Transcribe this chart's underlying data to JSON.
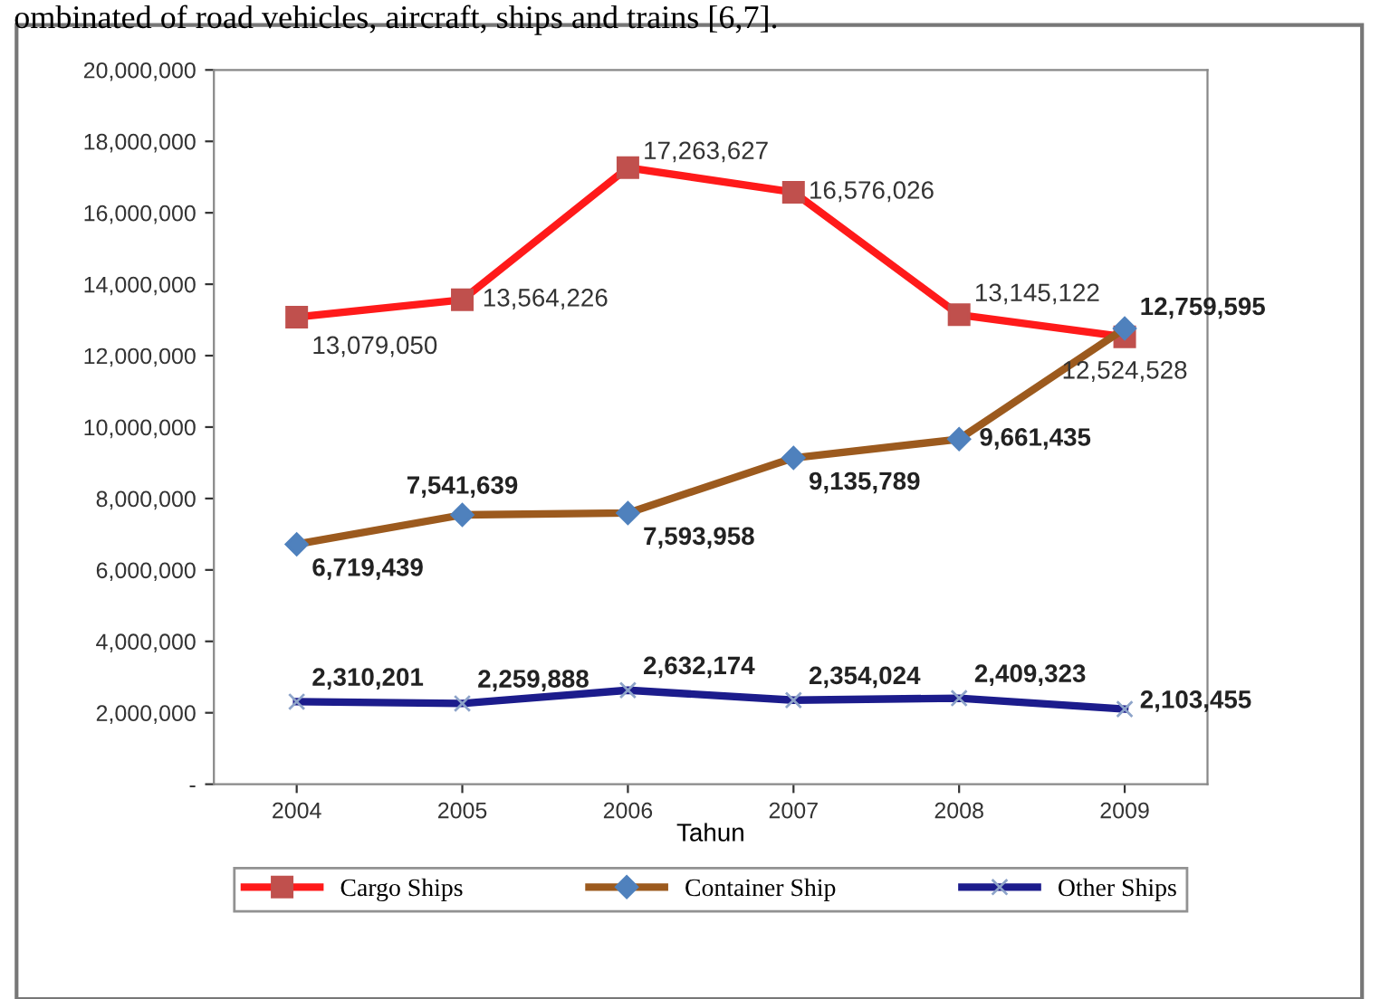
{
  "chart_data": {
    "type": "line",
    "xlabel": "Tahun",
    "annotations": [
      "ombinated of road vehicles, aircraft, ships and trains [6,7]."
    ],
    "categories": [
      "2004",
      "2005",
      "2006",
      "2007",
      "2008",
      "2009"
    ],
    "series": [
      {
        "name": "Cargo Ships",
        "color": "#ff1a1a",
        "marker": "square",
        "values": [
          13079050,
          13564226,
          17263627,
          16576026,
          13145122,
          12524528
        ],
        "value_labels": [
          "13,079,050",
          "13,564,226",
          "17,263,627",
          "16,576,026",
          "13,145,122",
          "12,524,528"
        ]
      },
      {
        "name": "Container Ship",
        "color": "#9c5a1e",
        "marker": "diamond",
        "values": [
          6719439,
          7541639,
          7593958,
          9135789,
          9661435,
          12759595
        ],
        "value_labels": [
          "6,719,439",
          "7,541,639",
          "7,593,958",
          "9,135,789",
          "9,661,435",
          "12,759,595"
        ]
      },
      {
        "name": "Other Ships",
        "color": "#1c1c8c",
        "marker": "cross",
        "values": [
          2310201,
          2259888,
          2632174,
          2354024,
          2409323,
          2103455
        ],
        "value_labels": [
          "2,310,201",
          "2,259,888",
          "2,632,174",
          "2,354,024",
          "2,409,323",
          "2,103,455"
        ]
      }
    ],
    "ylim": [
      0,
      20000000
    ],
    "yticks": [
      {
        "value": 0,
        "label": "-"
      },
      {
        "value": 2000000,
        "label": "2,000,000"
      },
      {
        "value": 4000000,
        "label": "4,000,000"
      },
      {
        "value": 6000000,
        "label": "6,000,000"
      },
      {
        "value": 8000000,
        "label": "8,000,000"
      },
      {
        "value": 10000000,
        "label": "10,000,000"
      },
      {
        "value": 12000000,
        "label": "12,000,000"
      },
      {
        "value": 14000000,
        "label": "14,000,000"
      },
      {
        "value": 16000000,
        "label": "16,000,000"
      },
      {
        "value": 18000000,
        "label": "18,000,000"
      },
      {
        "value": 20000000,
        "label": "20,000,000"
      }
    ],
    "legend": "bottom",
    "grid": false
  }
}
